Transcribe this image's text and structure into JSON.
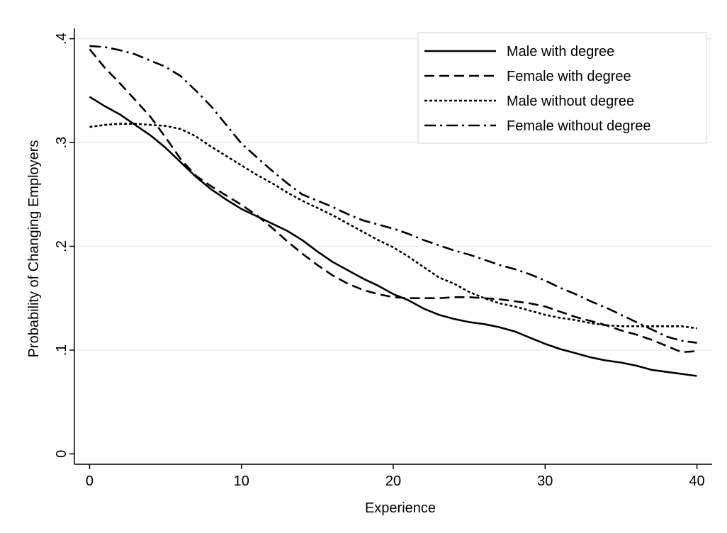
{
  "chart_data": {
    "type": "line",
    "title": "",
    "xlabel": "Experience",
    "ylabel": "Probability of Changing Employers",
    "xlim": [
      -1,
      41
    ],
    "ylim": [
      -0.01,
      0.41
    ],
    "xticks": [
      0,
      10,
      20,
      30,
      40
    ],
    "xtick_labels": [
      "0",
      "10",
      "20",
      "30",
      "40"
    ],
    "yticks": [
      0,
      0.1,
      0.2,
      0.3,
      0.4
    ],
    "ytick_labels": [
      "0",
      ".1",
      ".2",
      ".3",
      ".4"
    ],
    "grid": "horizontal",
    "legend_position": "top-right",
    "series": [
      {
        "name": "Male with degree",
        "dash": "solid",
        "color": "#000000",
        "x": [
          0,
          1,
          2,
          3,
          4,
          5,
          6,
          7,
          8,
          9,
          10,
          11,
          12,
          13,
          14,
          15,
          16,
          17,
          18,
          19,
          20,
          21,
          22,
          23,
          24,
          25,
          26,
          27,
          28,
          29,
          30,
          31,
          32,
          33,
          34,
          35,
          36,
          37,
          38,
          39,
          40
        ],
        "values": [
          0.344,
          0.335,
          0.327,
          0.317,
          0.307,
          0.295,
          0.281,
          0.267,
          0.255,
          0.245,
          0.236,
          0.229,
          0.222,
          0.215,
          0.206,
          0.195,
          0.185,
          0.177,
          0.169,
          0.162,
          0.154,
          0.148,
          0.14,
          0.134,
          0.13,
          0.127,
          0.125,
          0.122,
          0.118,
          0.112,
          0.106,
          0.101,
          0.097,
          0.093,
          0.09,
          0.088,
          0.085,
          0.081,
          0.079,
          0.077,
          0.075
        ]
      },
      {
        "name": "Female with degree",
        "dash": "long-dash",
        "color": "#000000",
        "x": [
          0,
          1,
          2,
          3,
          4,
          5,
          6,
          7,
          8,
          9,
          10,
          11,
          12,
          13,
          14,
          15,
          16,
          17,
          18,
          19,
          20,
          21,
          22,
          23,
          24,
          25,
          26,
          27,
          28,
          29,
          30,
          31,
          32,
          33,
          34,
          35,
          36,
          37,
          38,
          39,
          40
        ],
        "values": [
          0.39,
          0.372,
          0.357,
          0.341,
          0.325,
          0.305,
          0.284,
          0.268,
          0.258,
          0.249,
          0.24,
          0.23,
          0.218,
          0.205,
          0.193,
          0.182,
          0.172,
          0.164,
          0.158,
          0.154,
          0.151,
          0.15,
          0.15,
          0.15,
          0.151,
          0.151,
          0.15,
          0.149,
          0.147,
          0.145,
          0.142,
          0.137,
          0.132,
          0.128,
          0.124,
          0.119,
          0.115,
          0.11,
          0.104,
          0.098,
          0.099
        ]
      },
      {
        "name": "Male without degree",
        "dash": "short-dash",
        "color": "#000000",
        "x": [
          0,
          1,
          2,
          3,
          4,
          5,
          6,
          7,
          8,
          9,
          10,
          11,
          12,
          13,
          14,
          15,
          16,
          17,
          18,
          19,
          20,
          21,
          22,
          23,
          24,
          25,
          26,
          27,
          28,
          29,
          30,
          31,
          32,
          33,
          34,
          35,
          36,
          37,
          38,
          39,
          40
        ],
        "values": [
          0.315,
          0.317,
          0.318,
          0.318,
          0.317,
          0.316,
          0.313,
          0.306,
          0.296,
          0.287,
          0.278,
          0.269,
          0.261,
          0.252,
          0.244,
          0.237,
          0.23,
          0.222,
          0.214,
          0.206,
          0.199,
          0.19,
          0.18,
          0.17,
          0.164,
          0.156,
          0.15,
          0.145,
          0.142,
          0.138,
          0.134,
          0.131,
          0.129,
          0.126,
          0.124,
          0.123,
          0.123,
          0.123,
          0.123,
          0.123,
          0.121
        ]
      },
      {
        "name": "Female without degree",
        "dash": "dash-dot",
        "color": "#000000",
        "x": [
          0,
          1,
          2,
          3,
          4,
          5,
          6,
          7,
          8,
          9,
          10,
          11,
          12,
          13,
          14,
          15,
          16,
          17,
          18,
          19,
          20,
          21,
          22,
          23,
          24,
          25,
          26,
          27,
          28,
          29,
          30,
          31,
          32,
          33,
          34,
          35,
          36,
          37,
          38,
          39,
          40
        ],
        "values": [
          0.393,
          0.392,
          0.389,
          0.385,
          0.379,
          0.373,
          0.364,
          0.35,
          0.335,
          0.317,
          0.299,
          0.286,
          0.273,
          0.261,
          0.25,
          0.244,
          0.238,
          0.231,
          0.225,
          0.221,
          0.217,
          0.212,
          0.206,
          0.201,
          0.196,
          0.192,
          0.187,
          0.182,
          0.178,
          0.173,
          0.167,
          0.16,
          0.154,
          0.147,
          0.141,
          0.134,
          0.127,
          0.12,
          0.113,
          0.109,
          0.107
        ]
      }
    ]
  }
}
